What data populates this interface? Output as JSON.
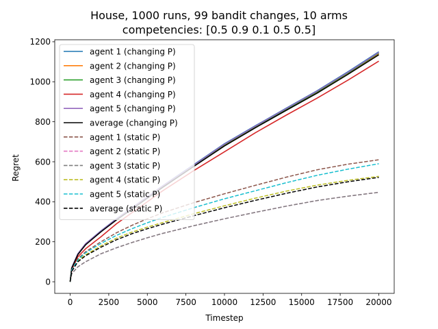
{
  "chart_data": {
    "type": "line",
    "title_line1": "House, 1000 runs, 99 bandit changes, 10 arms",
    "title_line2": "competencies: [0.5 0.9 0.1 0.5 0.5]",
    "xlabel": "Timestep",
    "ylabel": "Regret",
    "xlim": [
      -1000,
      21000
    ],
    "ylim": [
      -58,
      1210
    ],
    "xticks": [
      0,
      2500,
      5000,
      7500,
      10000,
      12500,
      15000,
      17500,
      20000
    ],
    "yticks": [
      0,
      200,
      400,
      600,
      800,
      1000,
      1200
    ],
    "grid": false,
    "legend_position": "upper-left",
    "x": [
      0,
      100,
      500,
      1000,
      2000,
      3000,
      4000,
      5000,
      6000,
      8000,
      10000,
      12000,
      14000,
      16000,
      18000,
      20000
    ],
    "series": [
      {
        "name": "agent 1 (changing P)",
        "color": "#1f77b4",
        "dash": "solid",
        "values": [
          0,
          70,
          140,
          190,
          255,
          315,
          370,
          425,
          480,
          585,
          690,
          780,
          868,
          955,
          1050,
          1150
        ]
      },
      {
        "name": "agent 2 (changing P)",
        "color": "#ff7f0e",
        "dash": "solid",
        "values": [
          0,
          69,
          138,
          188,
          252,
          312,
          366,
          420,
          475,
          579,
          683,
          773,
          860,
          946,
          1040,
          1140
        ]
      },
      {
        "name": "agent 3 (changing P)",
        "color": "#2ca02c",
        "dash": "solid",
        "values": [
          0,
          69,
          139,
          189,
          253,
          313,
          368,
          422,
          477,
          581,
          686,
          776,
          863,
          950,
          1044,
          1144
        ]
      },
      {
        "name": "agent 4 (changing P)",
        "color": "#d62728",
        "dash": "solid",
        "values": [
          0,
          60,
          125,
          165,
          225,
          290,
          345,
          400,
          455,
          555,
          650,
          745,
          833,
          918,
          1008,
          1103
        ]
      },
      {
        "name": "agent 5 (changing P)",
        "color": "#9467bd",
        "dash": "solid",
        "values": [
          0,
          70,
          140,
          190,
          254,
          314,
          369,
          424,
          479,
          583,
          688,
          778,
          866,
          953,
          1047,
          1147
        ]
      },
      {
        "name": "average (changing P)",
        "color": "#000000",
        "dash": "solid",
        "values": [
          0,
          68,
          136,
          185,
          250,
          309,
          363,
          418,
          472,
          576,
          679,
          770,
          857,
          943,
          1037,
          1135
        ]
      },
      {
        "name": "agent 1 (static P)",
        "color": "#8c564b",
        "dash": "dashed",
        "values": [
          0,
          60,
          115,
          150,
          200,
          245,
          282,
          315,
          345,
          395,
          440,
          482,
          523,
          560,
          588,
          610
        ]
      },
      {
        "name": "agent 2 (static P)",
        "color": "#e377c2",
        "dash": "dashed",
        "values": [
          0,
          40,
          75,
          100,
          140,
          170,
          196,
          220,
          242,
          280,
          315,
          347,
          378,
          406,
          428,
          447
        ]
      },
      {
        "name": "agent 3 (static P)",
        "color": "#7f7f7f",
        "dash": "dashed",
        "values": [
          0,
          40,
          75,
          100,
          140,
          170,
          196,
          220,
          242,
          280,
          315,
          347,
          378,
          406,
          428,
          447
        ]
      },
      {
        "name": "agent 4 (static P)",
        "color": "#bcbd22",
        "dash": "dashed",
        "values": [
          0,
          55,
          105,
          135,
          180,
          218,
          248,
          273,
          296,
          340,
          380,
          418,
          453,
          483,
          507,
          527
        ]
      },
      {
        "name": "agent 5 (static P)",
        "color": "#17becf",
        "dash": "dashed",
        "values": [
          0,
          58,
          110,
          145,
          192,
          232,
          265,
          295,
          322,
          370,
          415,
          455,
          495,
          532,
          563,
          590
        ]
      },
      {
        "name": "average (static P)",
        "color": "#000000",
        "dash": "dashed",
        "values": [
          0,
          52,
          100,
          130,
          173,
          210,
          240,
          265,
          288,
          330,
          370,
          407,
          442,
          474,
          500,
          522
        ]
      }
    ]
  }
}
